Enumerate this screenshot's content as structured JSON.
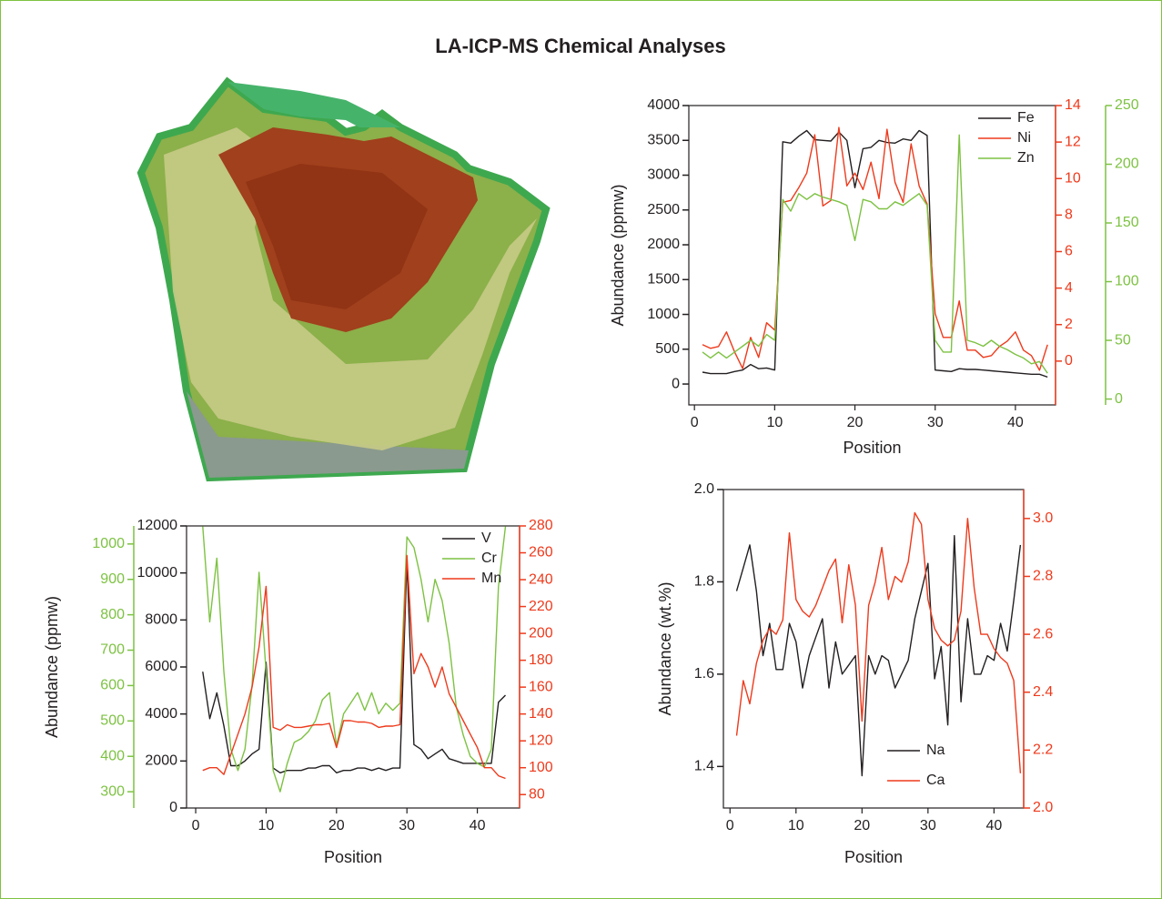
{
  "title": "LA-ICP-MS Chemical Analyses",
  "chart_data": [
    {
      "type": "line",
      "legend": "upper right",
      "xlabel": "Position",
      "ylabel": "Abundance (ppmw)",
      "xlim": [
        -0.7,
        45
      ],
      "xticks": [
        0,
        10,
        20,
        30,
        40
      ],
      "ylim": [
        -300,
        4000
      ],
      "yticks": [
        0,
        500,
        1000,
        1500,
        2000,
        2500,
        3000,
        3500,
        4000
      ],
      "y2lim": [
        -2.4,
        14
      ],
      "y2ticks": [
        0,
        2,
        4,
        6,
        8,
        10,
        12,
        14
      ],
      "y3lim": [
        -5,
        250
      ],
      "y3ticks": [
        0,
        50,
        100,
        150,
        200,
        250
      ],
      "x": [
        1,
        2,
        3,
        4,
        5,
        6,
        7,
        8,
        9,
        10,
        11,
        12,
        13,
        14,
        15,
        16,
        17,
        18,
        19,
        20,
        21,
        22,
        23,
        24,
        25,
        26,
        27,
        28,
        29,
        30,
        31,
        32,
        33,
        34,
        35,
        36,
        37,
        38,
        39,
        40,
        41,
        42,
        43,
        44
      ],
      "series": [
        {
          "name": "Fe",
          "color": "#231f20",
          "axis": "y",
          "values": [
            170,
            150,
            150,
            150,
            180,
            200,
            280,
            220,
            230,
            200,
            3480,
            3460,
            3560,
            3640,
            3510,
            3500,
            3490,
            3620,
            3500,
            2820,
            3380,
            3400,
            3500,
            3470,
            3460,
            3520,
            3500,
            3640,
            3570,
            200,
            190,
            180,
            220,
            210,
            210,
            200,
            190,
            180,
            170,
            160,
            150,
            140,
            140,
            100
          ]
        },
        {
          "name": "Ni",
          "color": "#ee3a1c",
          "axis": "y2",
          "values": [
            0.9,
            0.7,
            0.8,
            1.6,
            0.5,
            -0.4,
            1.3,
            0.2,
            2.1,
            1.7,
            8.7,
            8.8,
            9.5,
            10.3,
            12.4,
            8.5,
            8.8,
            12.8,
            9.6,
            10.3,
            9.4,
            10.9,
            8.9,
            12.7,
            9.8,
            8.7,
            11.9,
            9.6,
            8.6,
            2.6,
            1.3,
            1.3,
            3.3,
            0.6,
            0.6,
            0.2,
            0.3,
            0.8,
            1.1,
            1.6,
            0.6,
            0.3,
            -0.5,
            0.9
          ]
        },
        {
          "name": "Zn",
          "color": "#7dc242",
          "axis": "y3",
          "values": [
            40,
            35,
            40,
            35,
            40,
            45,
            50,
            45,
            55,
            50,
            170,
            160,
            175,
            170,
            175,
            172,
            170,
            168,
            165,
            135,
            170,
            168,
            162,
            162,
            168,
            165,
            170,
            175,
            165,
            50,
            40,
            40,
            225,
            50,
            48,
            45,
            50,
            45,
            42,
            38,
            35,
            30,
            32,
            22
          ]
        }
      ]
    },
    {
      "type": "line",
      "legend": "upper right",
      "xlabel": "Position",
      "ylabel": "Abundance (ppmw)",
      "xlim": [
        -1.3,
        46
      ],
      "xticks": [
        0,
        10,
        20,
        30,
        40
      ],
      "ylim": [
        0,
        12000
      ],
      "yticks": [
        0,
        2000,
        4000,
        6000,
        8000,
        10000,
        12000
      ],
      "y2lim": [
        70,
        280
      ],
      "y2ticks": [
        80,
        100,
        120,
        140,
        160,
        180,
        200,
        220,
        240,
        260,
        280
      ],
      "y3lim": [
        254,
        1051
      ],
      "y3ticks": [
        300,
        400,
        500,
        600,
        700,
        800,
        900,
        1000
      ],
      "x": [
        1,
        2,
        3,
        4,
        5,
        6,
        7,
        8,
        9,
        10,
        11,
        12,
        13,
        14,
        15,
        16,
        17,
        18,
        19,
        20,
        21,
        22,
        23,
        24,
        25,
        26,
        27,
        28,
        29,
        30,
        31,
        32,
        33,
        34,
        35,
        36,
        37,
        38,
        39,
        40,
        41,
        42,
        43,
        44
      ],
      "series": [
        {
          "name": "V",
          "color": "#231f20",
          "axis": "y",
          "values": [
            5800,
            3800,
            4900,
            3500,
            1800,
            1800,
            2000,
            2300,
            2500,
            6200,
            1700,
            1500,
            1600,
            1600,
            1600,
            1700,
            1700,
            1800,
            1800,
            1500,
            1600,
            1600,
            1700,
            1700,
            1600,
            1700,
            1600,
            1700,
            1700,
            10500,
            2700,
            2500,
            2100,
            2300,
            2500,
            2100,
            2000,
            1900,
            1900,
            1900,
            1900,
            1900,
            4500,
            4800
          ]
        },
        {
          "name": "Cr",
          "color": "#7dc242",
          "axis": "y3",
          "values": [
            1050,
            780,
            960,
            640,
            420,
            360,
            420,
            600,
            920,
            640,
            360,
            300,
            380,
            440,
            450,
            470,
            500,
            560,
            580,
            430,
            520,
            550,
            580,
            530,
            580,
            520,
            550,
            530,
            550,
            1020,
            990,
            900,
            780,
            900,
            840,
            720,
            540,
            460,
            400,
            380,
            370,
            420,
            880,
            1050
          ]
        },
        {
          "name": "Mn",
          "color": "#ee3a1c",
          "axis": "y2",
          "values": [
            98,
            100,
            100,
            95,
            110,
            125,
            140,
            160,
            190,
            235,
            130,
            128,
            132,
            130,
            130,
            131,
            132,
            132,
            133,
            115,
            135,
            135,
            134,
            134,
            133,
            130,
            131,
            131,
            132,
            258,
            170,
            185,
            175,
            160,
            175,
            155,
            145,
            135,
            125,
            115,
            100,
            100,
            94,
            92
          ]
        }
      ]
    },
    {
      "type": "line",
      "legend": "lower center",
      "xlabel": "Position",
      "ylabel": "Abundance (wt.%)",
      "xlim": [
        -1,
        44.5
      ],
      "xticks": [
        0,
        10,
        20,
        30,
        40
      ],
      "ylim": [
        1.31,
        2.0
      ],
      "yticks": [
        1.4,
        1.6,
        1.8,
        {
          "value": 2.0,
          "label": "2.0"
        }
      ],
      "y2lim": [
        2.0,
        3.1
      ],
      "y2ticks": [
        {
          "value": 2.0,
          "label": "2.0"
        },
        2.2,
        2.4,
        2.6,
        2.8,
        {
          "value": 3.0,
          "label": "3.0"
        }
      ],
      "x": [
        1,
        2,
        3,
        4,
        5,
        6,
        7,
        8,
        9,
        10,
        11,
        12,
        13,
        14,
        15,
        16,
        17,
        18,
        19,
        20,
        21,
        22,
        23,
        24,
        25,
        26,
        27,
        28,
        29,
        30,
        31,
        32,
        33,
        34,
        35,
        36,
        37,
        38,
        39,
        40,
        41,
        42,
        43,
        44
      ],
      "series": [
        {
          "name": "Na",
          "color": "#231f20",
          "axis": "y",
          "values": [
            1.78,
            1.83,
            1.88,
            1.78,
            1.64,
            1.71,
            1.61,
            1.61,
            1.71,
            1.67,
            1.57,
            1.64,
            1.68,
            1.72,
            1.57,
            1.67,
            1.6,
            1.62,
            1.64,
            1.38,
            1.64,
            1.6,
            1.64,
            1.63,
            1.57,
            1.6,
            1.63,
            1.72,
            1.78,
            1.84,
            1.59,
            1.66,
            1.49,
            1.9,
            1.54,
            1.72,
            1.6,
            1.6,
            1.64,
            1.63,
            1.71,
            1.65,
            1.76,
            1.88
          ]
        },
        {
          "name": "Ca",
          "color": "#ee3a1c",
          "axis": "y2",
          "values": [
            2.25,
            2.44,
            2.36,
            2.5,
            2.58,
            2.62,
            2.6,
            2.65,
            2.95,
            2.72,
            2.68,
            2.66,
            2.7,
            2.76,
            2.82,
            2.86,
            2.64,
            2.84,
            2.7,
            2.3,
            2.7,
            2.78,
            2.9,
            2.72,
            2.8,
            2.78,
            2.85,
            3.02,
            2.98,
            2.72,
            2.62,
            2.58,
            2.56,
            2.58,
            2.68,
            3.0,
            2.76,
            2.6,
            2.6,
            2.55,
            2.52,
            2.5,
            2.44,
            2.12
          ]
        }
      ]
    }
  ]
}
